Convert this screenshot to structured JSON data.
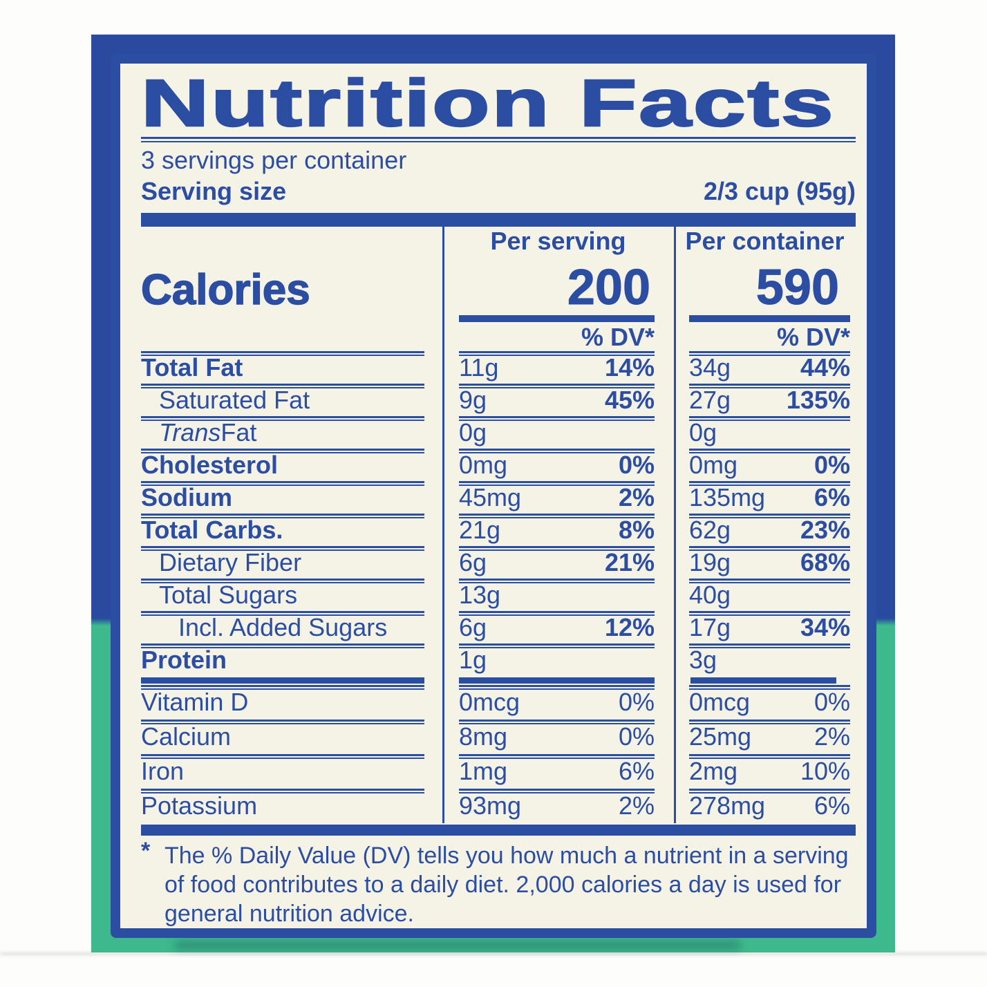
{
  "colors": {
    "label_ink": "#2b4da2",
    "package_blue": "#2a4a9f",
    "package_green": "#3dba8d",
    "label_background": "#f5f2e6"
  },
  "label": {
    "title": "Nutrition Facts",
    "servings_per_container": "3 servings per container",
    "serving_size_label": "Serving size",
    "serving_size_value": "2/3 cup (95g)",
    "calories": {
      "label": "Calories",
      "col1_header": "Per serving",
      "col2_header": "Per container",
      "per_serving": "200",
      "per_container": "590",
      "dv_header": "% DV*"
    },
    "nutrients": [
      {
        "name": "Total Fat",
        "name_bold": true,
        "indent": 0,
        "cols": [
          {
            "amt": "11g",
            "dv": "14%"
          },
          {
            "amt": "34g",
            "dv": "44%"
          }
        ]
      },
      {
        "name": "Saturated Fat",
        "indent": 1,
        "cols": [
          {
            "amt": "9g",
            "dv": "45%"
          },
          {
            "amt": "27g",
            "dv": "135%"
          }
        ]
      },
      {
        "name_italic": "Trans",
        "name": " Fat",
        "indent": 1,
        "cols": [
          {
            "amt": "0g"
          },
          {
            "amt": "0g"
          }
        ]
      },
      {
        "name": "Cholesterol",
        "name_bold": true,
        "indent": 0,
        "cols": [
          {
            "amt": "0mg",
            "dv": "0%"
          },
          {
            "amt": "0mg",
            "dv": "0%"
          }
        ]
      },
      {
        "name": "Sodium",
        "name_bold": true,
        "indent": 0,
        "cols": [
          {
            "amt": "45mg",
            "dv": "2%"
          },
          {
            "amt": "135mg",
            "dv": "6%"
          }
        ]
      },
      {
        "name": "Total Carbs.",
        "name_bold": true,
        "indent": 0,
        "cols": [
          {
            "amt": "21g",
            "dv": "8%"
          },
          {
            "amt": "62g",
            "dv": "23%"
          }
        ]
      },
      {
        "name": "Dietary Fiber",
        "indent": 1,
        "cols": [
          {
            "amt": "6g",
            "dv": "21%"
          },
          {
            "amt": "19g",
            "dv": "68%"
          }
        ]
      },
      {
        "name": "Total Sugars",
        "indent": 1,
        "cols": [
          {
            "amt": "13g"
          },
          {
            "amt": "40g"
          }
        ]
      },
      {
        "name": "Incl. Added Sugars",
        "indent": 2,
        "cols": [
          {
            "amt": "6g",
            "dv": "12%"
          },
          {
            "amt": "17g",
            "dv": "34%"
          }
        ]
      },
      {
        "name": "Protein",
        "name_bold": true,
        "indent": 0,
        "cols": [
          {
            "amt": "1g"
          },
          {
            "amt": "3g"
          }
        ]
      }
    ],
    "vitamins": [
      {
        "name": "Vitamin D",
        "cols": [
          {
            "amt": "0mcg",
            "dv": "0%"
          },
          {
            "amt": "0mcg",
            "dv": "0%"
          }
        ]
      },
      {
        "name": "Calcium",
        "cols": [
          {
            "amt": "8mg",
            "dv": "0%"
          },
          {
            "amt": "25mg",
            "dv": "2%"
          }
        ]
      },
      {
        "name": "Iron",
        "cols": [
          {
            "amt": "1mg",
            "dv": "6%"
          },
          {
            "amt": "2mg",
            "dv": "10%"
          }
        ]
      },
      {
        "name": "Potassium",
        "cols": [
          {
            "amt": "93mg",
            "dv": "2%"
          },
          {
            "amt": "278mg",
            "dv": "6%"
          }
        ]
      }
    ],
    "footnote_asterisk": "*",
    "footnote": "The % Daily Value (DV) tells you how much a nutrient in a serving of food contributes to a daily diet. 2,000 calories a day is used for general nutrition advice."
  }
}
